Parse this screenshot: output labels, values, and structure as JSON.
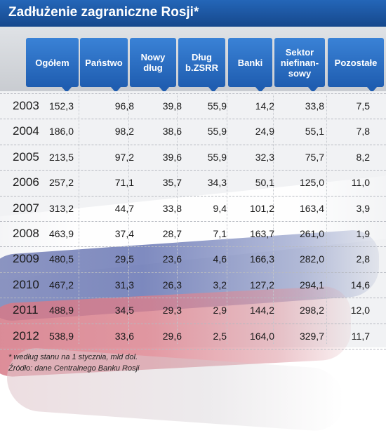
{
  "title": "Zadłużenie zagraniczne Rosji*",
  "chart_data": {
    "type": "table",
    "title": "Zadłużenie zagraniczne Rosji*",
    "columns": [
      {
        "label": "Ogółem"
      },
      {
        "label": "Państwo"
      },
      {
        "label": "Nowy\ndług"
      },
      {
        "label": "Dług\nb.ZSRR"
      },
      {
        "label": "Banki"
      },
      {
        "label": "Sektor\nniefinan-\nsowy"
      },
      {
        "label": "Pozostałe"
      }
    ],
    "rows": [
      {
        "year": "2003",
        "values": [
          "152,3",
          "96,8",
          "39,8",
          "55,9",
          "14,2",
          "33,8",
          "7,5"
        ]
      },
      {
        "year": "2004",
        "values": [
          "186,0",
          "98,2",
          "38,6",
          "55,9",
          "24,9",
          "55,1",
          "7,8"
        ]
      },
      {
        "year": "2005",
        "values": [
          "213,5",
          "97,2",
          "39,6",
          "55,9",
          "32,3",
          "75,7",
          "8,2"
        ]
      },
      {
        "year": "2006",
        "values": [
          "257,2",
          "71,1",
          "35,7",
          "34,3",
          "50,1",
          "125,0",
          "11,0"
        ]
      },
      {
        "year": "2007",
        "values": [
          "313,2",
          "44,7",
          "33,8",
          "9,4",
          "101,2",
          "163,4",
          "3,9"
        ]
      },
      {
        "year": "2008",
        "values": [
          "463,9",
          "37,4",
          "28,7",
          "7,1",
          "163,7",
          "261,0",
          "1,9"
        ]
      },
      {
        "year": "2009",
        "values": [
          "480,5",
          "29,5",
          "23,6",
          "4,6",
          "166,3",
          "282,0",
          "2,8"
        ]
      },
      {
        "year": "2010",
        "values": [
          "467,2",
          "31,3",
          "26,3",
          "3,2",
          "127,2",
          "294,1",
          "14,6"
        ]
      },
      {
        "year": "2011",
        "values": [
          "488,9",
          "34,5",
          "29,3",
          "2,9",
          "144,2",
          "298,2",
          "12,0"
        ]
      },
      {
        "year": "2012",
        "values": [
          "538,9",
          "33,6",
          "29,6",
          "2,5",
          "164,0",
          "329,7",
          "11,7"
        ]
      }
    ]
  },
  "footnotes": {
    "note": "* według stanu na 1 stycznia, mld dol.",
    "source": "Źródło: dane Centralnego Banku Rosji"
  },
  "colors": {
    "title_bar": "#1d59a6",
    "header_cell": "#2b6fc2",
    "flag_white": "#ffffff",
    "flag_blue": "#5f6eb0",
    "flag_red": "#dc808c"
  }
}
